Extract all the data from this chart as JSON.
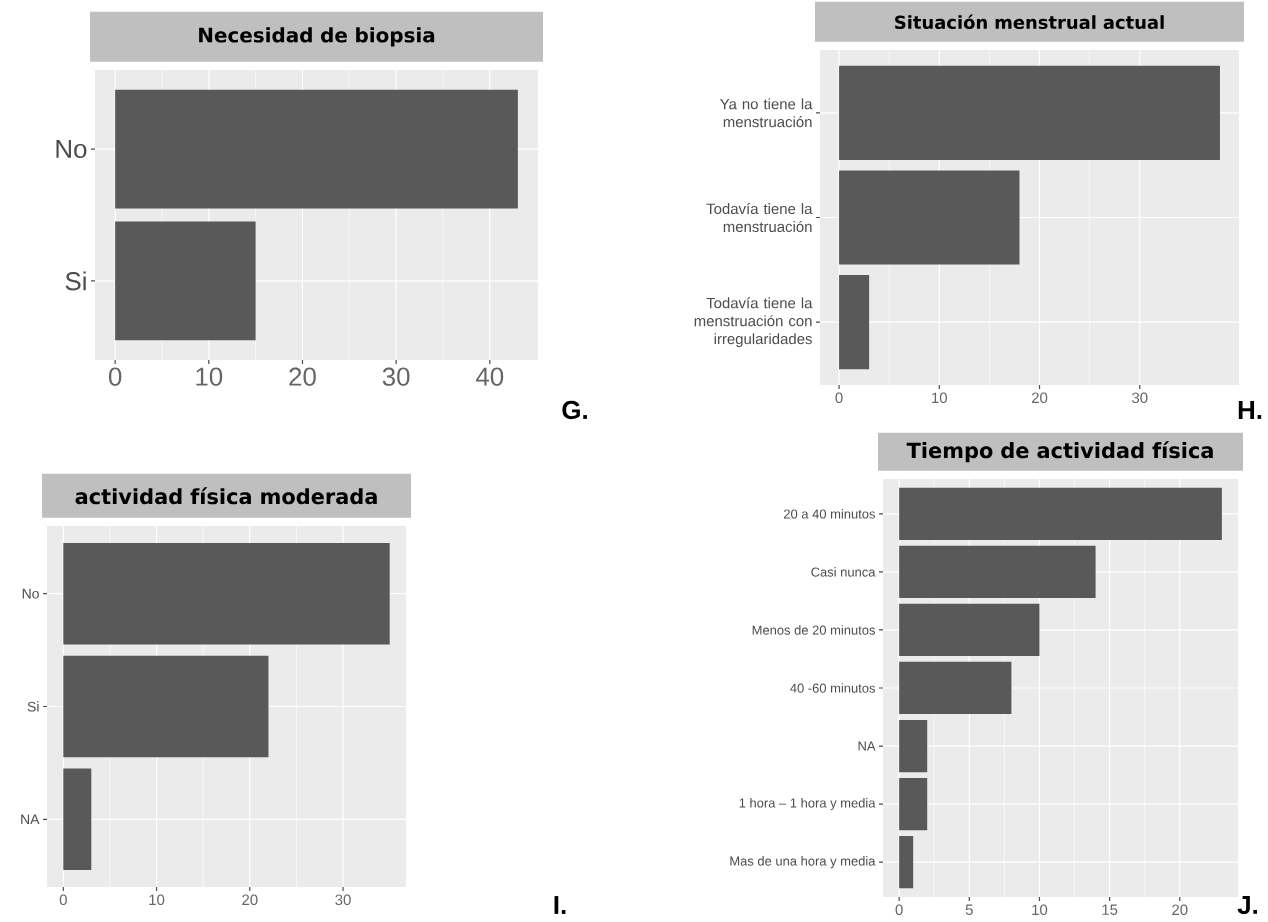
{
  "chart_data": [
    {
      "type": "bar",
      "orientation": "horizontal",
      "title": "Necesidad de biopsia",
      "categories": [
        "No",
        "Si"
      ],
      "values": [
        43,
        15
      ],
      "color": "#595959",
      "xlim": [
        -2.15,
        45.15
      ],
      "xticks": [
        0,
        10,
        20,
        30,
        40
      ],
      "grid": true,
      "annotations": [
        "G."
      ]
    },
    {
      "type": "bar",
      "orientation": "horizontal",
      "title": "Situación menstrual actual",
      "categories": [
        "Ya no tiene la menstruación",
        "Todavía tiene la menstruación",
        "Todavía tiene la menstruación con irregularidades"
      ],
      "values": [
        38,
        18,
        3
      ],
      "color": "#595959",
      "xlim": [
        -1.9,
        39.9
      ],
      "xticks": [
        0,
        10,
        20,
        30
      ],
      "grid": true,
      "annotations": [
        "H."
      ]
    },
    {
      "type": "bar",
      "orientation": "horizontal",
      "title": "actividad física moderada",
      "categories": [
        "No",
        "Si",
        "NA"
      ],
      "values": [
        35,
        22,
        3
      ],
      "color": "#595959",
      "xlim": [
        -1.75,
        36.75
      ],
      "xticks": [
        0,
        10,
        20,
        30
      ],
      "grid": true,
      "annotations": [
        "I."
      ]
    },
    {
      "type": "bar",
      "orientation": "horizontal",
      "title": "Tiempo de actividad física",
      "categories": [
        "20 a 40 minutos",
        "Casi nunca",
        "Menos de 20 minutos",
        "40 -60  minutos",
        "NA",
        "1 hora – 1 hora y media",
        "Mas de una hora y media"
      ],
      "values": [
        23,
        14,
        10,
        8,
        2,
        2,
        1
      ],
      "color": "#595959",
      "xlim": [
        -1.15,
        24.15
      ],
      "xticks": [
        0,
        5,
        10,
        15,
        20
      ],
      "grid": true,
      "annotations": [
        "J."
      ]
    }
  ]
}
